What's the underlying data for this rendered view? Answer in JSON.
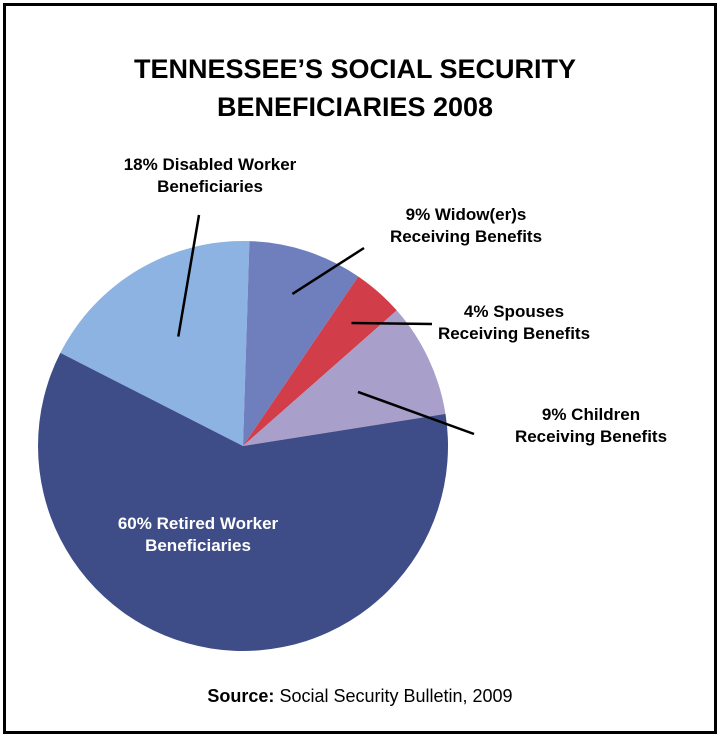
{
  "chart_data": {
    "type": "pie",
    "title_lines": [
      "TENNESSEE’S SOCIAL SECURITY",
      "BENEFICIARIES 2008"
    ],
    "start_angle_deg": 153,
    "direction": "clockwise",
    "slices": [
      {
        "value": 18,
        "label_lines": [
          "18% Disabled Worker",
          "Beneficiaries"
        ],
        "color": "#8db3e2"
      },
      {
        "value": 9,
        "label_lines": [
          "9% Widow(er)s",
          "Receiving Benefits"
        ],
        "color": "#6f7fbe"
      },
      {
        "value": 4,
        "label_lines": [
          "4% Spouses",
          "Receiving Benefits"
        ],
        "color": "#d13d48"
      },
      {
        "value": 9,
        "label_lines": [
          "9% Children",
          "Receiving Benefits"
        ],
        "color": "#a99fcb"
      },
      {
        "value": 60,
        "label_lines": [
          "60% Retired Worker",
          "Beneficiaries"
        ],
        "color": "#3e4d87"
      }
    ],
    "source": {
      "label": "Source:",
      "text": " Social Security Bulletin, 2009"
    }
  }
}
